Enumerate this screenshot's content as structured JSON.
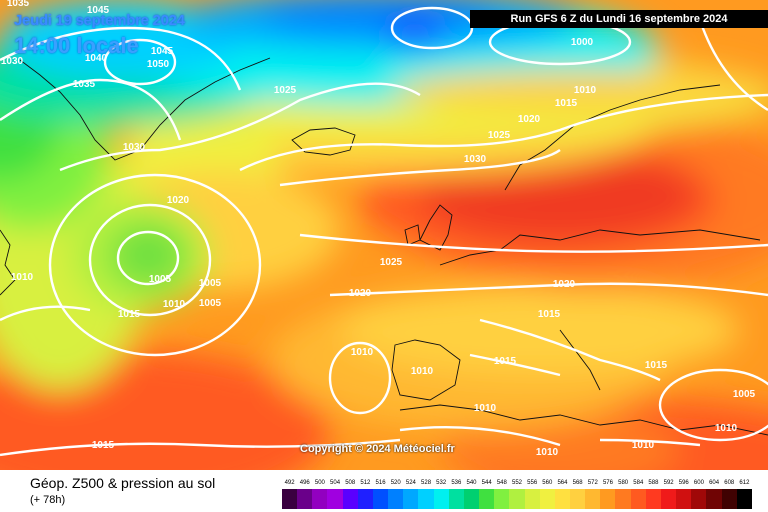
{
  "header": {
    "date_label": "Jeudi 19 septembre 2024",
    "time_label": "14:00 locale",
    "run_label": "Run GFS 6 Z du Lundi 16 septembre 2024"
  },
  "copyright": "Copyright © 2024 Météociel.fr",
  "legend": {
    "title": "Géop. Z500 & pression au sol",
    "lead": "(+ 78h)",
    "scale_values": [
      "492",
      "496",
      "500",
      "504",
      "508",
      "512",
      "516",
      "520",
      "524",
      "528",
      "532",
      "536",
      "540",
      "544",
      "548",
      "552",
      "556",
      "560",
      "564",
      "568",
      "572",
      "576",
      "580",
      "584",
      "588",
      "592",
      "596",
      "600",
      "604",
      "608",
      "612"
    ],
    "scale_colors": [
      "#3a0040",
      "#6a008a",
      "#9200c0",
      "#a000e0",
      "#5a00ff",
      "#1f20ff",
      "#0050ff",
      "#0080ff",
      "#00a8ff",
      "#00d0ff",
      "#00f0f0",
      "#00e0a0",
      "#00d070",
      "#40e040",
      "#80f040",
      "#b0f040",
      "#d8f040",
      "#f0f040",
      "#ffe040",
      "#ffd040",
      "#ffb830",
      "#ff9a20",
      "#ff7a20",
      "#ff5a20",
      "#ff3a20",
      "#f01a1a",
      "#d01010",
      "#a00808",
      "#700404",
      "#400202",
      "#000000"
    ]
  },
  "isobars": {
    "labels": [
      "1035",
      "1045",
      "1030",
      "1040",
      "1045",
      "1050",
      "1035",
      "1025",
      "1030",
      "1020",
      "1010",
      "1005",
      "1005",
      "1010",
      "1005",
      "1015",
      "1000",
      "1010",
      "1015",
      "1020",
      "1025",
      "1030",
      "1025",
      "1020",
      "1020",
      "1015",
      "1010",
      "1010",
      "1015",
      "1015",
      "1005",
      "1010",
      "1010",
      "1015",
      "1010",
      "1010"
    ]
  }
}
